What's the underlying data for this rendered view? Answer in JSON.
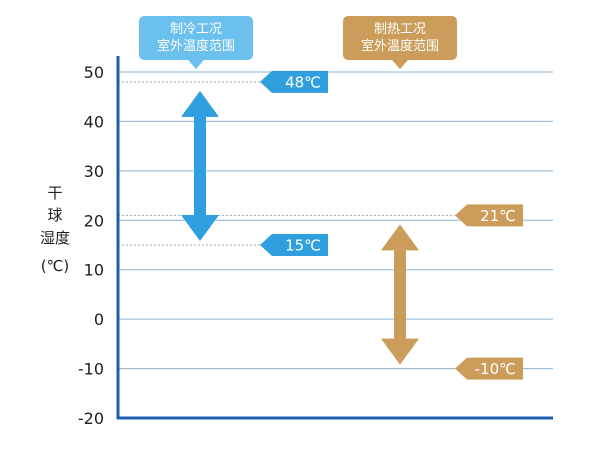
{
  "chart_data": {
    "type": "range",
    "ylabel_chars": [
      "干",
      "球",
      "湿度",
      "(℃)"
    ],
    "ylim": [
      -20,
      50
    ],
    "yticks": [
      50,
      40,
      30,
      20,
      10,
      0,
      -10,
      -20
    ],
    "grid": true,
    "colors": {
      "cooling": "#2f9fe0",
      "cooling_callout": "#6cc0ee",
      "heating": "#cc9d5a",
      "axis": "#1b5fb0",
      "grid": "#8eb5d6"
    },
    "series": [
      {
        "key": "cooling",
        "title_lines": [
          "制冷工况",
          "室外温度范围"
        ],
        "low": 15,
        "high": 48,
        "low_label": "15℃",
        "high_label": "48℃"
      },
      {
        "key": "heating",
        "title_lines": [
          "制热工况",
          "室外温度范围"
        ],
        "low": -10,
        "high": 21,
        "low_label": "-10℃",
        "high_label": "21℃"
      }
    ]
  }
}
